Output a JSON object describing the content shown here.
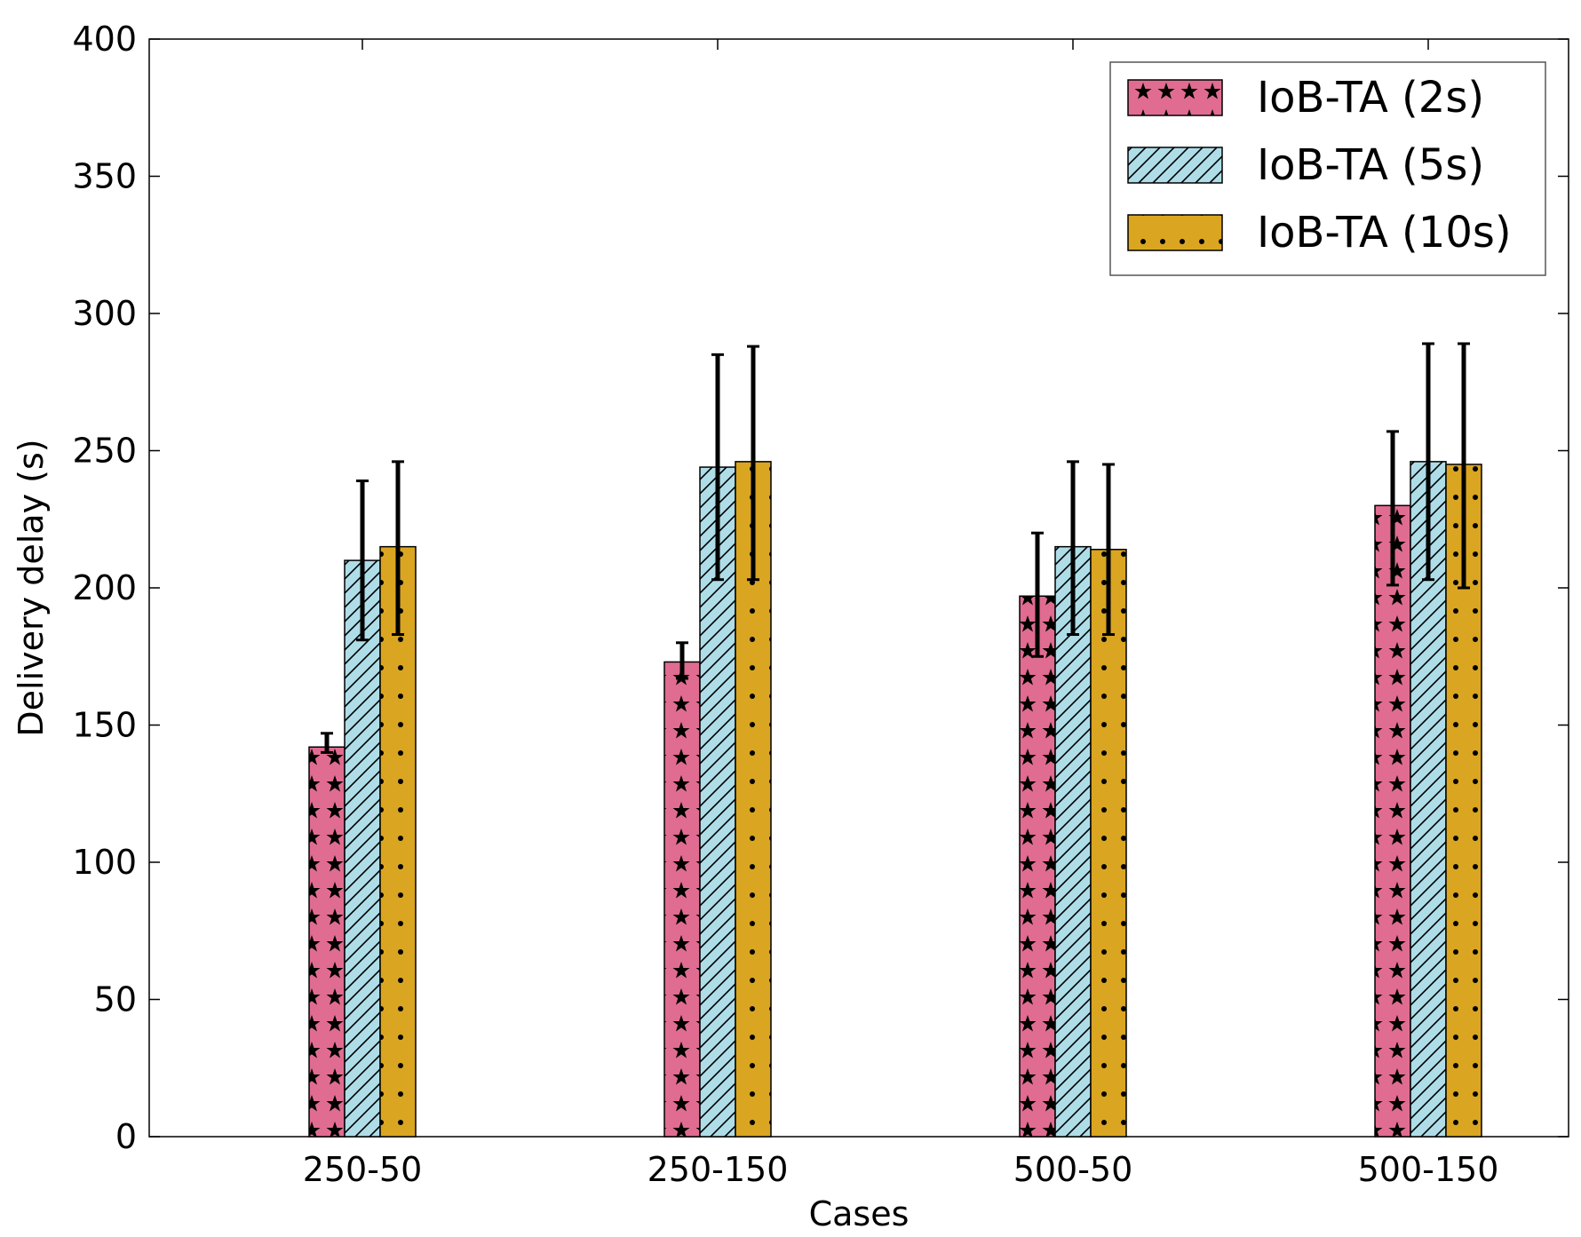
{
  "chart_data": {
    "type": "bar",
    "title": "",
    "xlabel": "Cases",
    "ylabel": "Delivery delay (s)",
    "ylim": [
      0,
      400
    ],
    "yticks": [
      0,
      50,
      100,
      150,
      200,
      250,
      300,
      350,
      400
    ],
    "ytick_labels": [
      "0",
      "50",
      "100",
      "150",
      "200",
      "250",
      "300",
      "350",
      "400"
    ],
    "categories": [
      "250-50",
      "250-150",
      "500-50",
      "500-150"
    ],
    "grid": false,
    "legend_position": "top-right",
    "series": [
      {
        "name": "IoB-TA (2s)",
        "color": "#e06c91",
        "pattern": "stars",
        "values": [
          142,
          173,
          197,
          230
        ],
        "err_low": [
          140,
          167,
          175,
          201
        ],
        "err_high": [
          147,
          180,
          220,
          257
        ]
      },
      {
        "name": "IoB-TA (5s)",
        "color": "#aedde8",
        "pattern": "diagonal-hatch",
        "values": [
          210,
          244,
          215,
          246
        ],
        "err_low": [
          181,
          203,
          183,
          203
        ],
        "err_high": [
          239,
          285,
          246,
          289
        ]
      },
      {
        "name": "IoB-TA (10s)",
        "color": "#daa520",
        "pattern": "dots",
        "values": [
          215,
          246,
          214,
          245
        ],
        "err_low": [
          183,
          203,
          183,
          200
        ],
        "err_high": [
          246,
          288,
          245,
          289
        ]
      }
    ]
  }
}
